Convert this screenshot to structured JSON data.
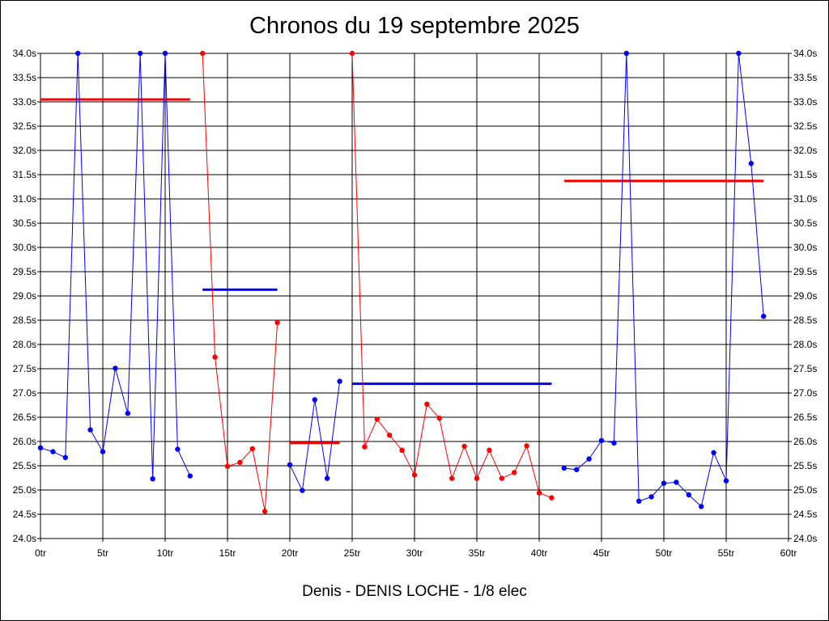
{
  "chart_data": {
    "type": "line",
    "title": "Chronos du 19 septembre 2025",
    "subtitle": "Denis - DENIS LOCHE - 1/8 elec",
    "xlim": [
      0,
      60
    ],
    "ylim": [
      24.0,
      34.0
    ],
    "x_ticks": [
      "0tr",
      "5tr",
      "10tr",
      "15tr",
      "20tr",
      "25tr",
      "30tr",
      "35tr",
      "40tr",
      "45tr",
      "50tr",
      "55tr",
      "60tr"
    ],
    "y_ticks": [
      "24.0s",
      "24.5s",
      "25.0s",
      "25.5s",
      "26.0s",
      "26.5s",
      "27.0s",
      "27.5s",
      "28.0s",
      "28.5s",
      "29.0s",
      "29.5s",
      "30.0s",
      "30.5s",
      "31.0s",
      "31.5s",
      "32.0s",
      "32.5s",
      "33.0s",
      "33.5s",
      "34.0s"
    ],
    "grid": true,
    "series": [
      {
        "color": "#0000ff",
        "x": [
          0,
          1,
          2,
          3,
          4,
          5,
          6,
          7,
          8,
          9,
          10,
          11,
          12
        ],
        "y": [
          25.87,
          25.79,
          25.67,
          34.0,
          26.24,
          25.79,
          27.51,
          26.58,
          34.0,
          25.23,
          34.0,
          25.84,
          25.29
        ]
      },
      {
        "color": "#ff0000",
        "x": [
          13,
          14,
          15,
          16,
          17,
          18,
          19
        ],
        "y": [
          34.0,
          27.74,
          25.49,
          25.57,
          25.85,
          24.56,
          28.45
        ]
      },
      {
        "color": "#0000ff",
        "x": [
          20,
          21,
          22,
          23,
          24
        ],
        "y": [
          25.52,
          24.99,
          26.86,
          25.24,
          27.24
        ]
      },
      {
        "color": "#ff0000",
        "x": [
          25,
          26,
          27,
          28,
          29,
          30,
          31,
          32,
          33,
          34,
          35,
          36,
          37,
          38,
          39,
          40,
          41
        ],
        "y": [
          34.0,
          25.89,
          26.46,
          26.13,
          25.82,
          25.31,
          26.77,
          26.48,
          25.24,
          25.9,
          25.24,
          25.82,
          25.24,
          25.36,
          25.91,
          24.94,
          24.84
        ]
      },
      {
        "color": "#0000ff",
        "x": [
          42,
          43,
          44,
          45,
          46,
          47,
          48,
          49,
          50,
          51,
          52,
          53,
          54,
          55,
          56,
          57,
          58
        ],
        "y": [
          25.45,
          25.42,
          25.64,
          26.02,
          25.97,
          34.0,
          24.77,
          24.86,
          25.14,
          25.16,
          24.9,
          24.66,
          25.77,
          25.19,
          34.0,
          31.73,
          28.58
        ]
      }
    ],
    "average_lines": [
      {
        "color": "#ff0000",
        "x": [
          0,
          12
        ],
        "y": 33.05
      },
      {
        "color": "#0000ff",
        "x": [
          13,
          19
        ],
        "y": 29.13
      },
      {
        "color": "#ff0000",
        "x": [
          20,
          24
        ],
        "y": 25.97
      },
      {
        "color": "#0000ff",
        "x": [
          25,
          41
        ],
        "y": 27.19
      },
      {
        "color": "#ff0000",
        "x": [
          42,
          58
        ],
        "y": 31.37
      }
    ]
  }
}
